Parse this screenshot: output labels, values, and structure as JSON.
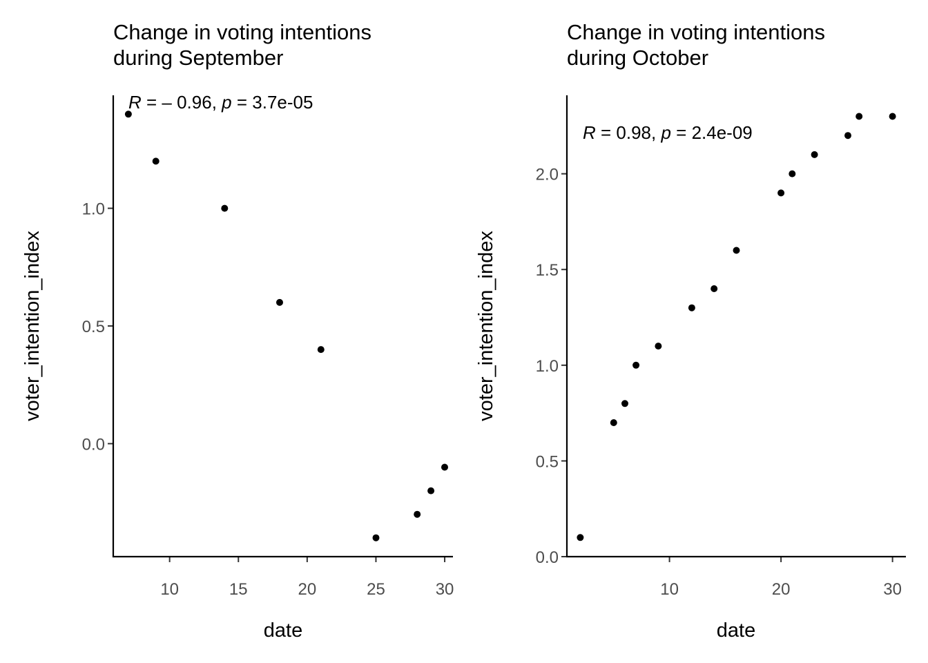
{
  "chart_data": [
    {
      "type": "scatter",
      "title_line1": "Change in voting intentions",
      "title_line2": "during September",
      "xlabel": "date",
      "ylabel": "voter_intention_index",
      "x_ticks": [
        10,
        15,
        20,
        25,
        30
      ],
      "x_tick_labels": [
        "10",
        "15",
        "20",
        "25",
        "30"
      ],
      "y_ticks": [
        0.0,
        0.5,
        1.0
      ],
      "y_tick_labels": [
        "0.0",
        "0.5",
        "1.0"
      ],
      "xlim": [
        5.9,
        30.6
      ],
      "ylim": [
        -0.48,
        1.48
      ],
      "points": [
        {
          "x": 7,
          "y": 1.4
        },
        {
          "x": 9,
          "y": 1.2
        },
        {
          "x": 14,
          "y": 1.0
        },
        {
          "x": 18,
          "y": 0.6
        },
        {
          "x": 21,
          "y": 0.4
        },
        {
          "x": 25,
          "y": -0.4
        },
        {
          "x": 28,
          "y": -0.3
        },
        {
          "x": 29,
          "y": -0.2
        },
        {
          "x": 30,
          "y": -0.1
        }
      ],
      "annotation": {
        "r_label": "R",
        "r_text": " = – 0.96, ",
        "p_label": "p",
        "p_text": " = 3.7e-05"
      },
      "grid": false
    },
    {
      "type": "scatter",
      "title_line1": "Change in voting intentions",
      "title_line2": "during October",
      "xlabel": "date",
      "ylabel": "voter_intention_index",
      "x_ticks": [
        10,
        20,
        30
      ],
      "x_tick_labels": [
        "10",
        "20",
        "30"
      ],
      "y_ticks": [
        0.0,
        0.5,
        1.0,
        1.5,
        2.0
      ],
      "y_tick_labels": [
        "0.0",
        "0.5",
        "1.0",
        "1.5",
        "2.0"
      ],
      "xlim": [
        0.8,
        31.2
      ],
      "ylim": [
        0.0,
        2.41
      ],
      "points": [
        {
          "x": 2,
          "y": 0.1
        },
        {
          "x": 5,
          "y": 0.7
        },
        {
          "x": 6,
          "y": 0.8
        },
        {
          "x": 7,
          "y": 1.0
        },
        {
          "x": 9,
          "y": 1.1
        },
        {
          "x": 12,
          "y": 1.3
        },
        {
          "x": 14,
          "y": 1.4
        },
        {
          "x": 16,
          "y": 1.6
        },
        {
          "x": 20,
          "y": 1.9
        },
        {
          "x": 21,
          "y": 2.0
        },
        {
          "x": 23,
          "y": 2.1
        },
        {
          "x": 26,
          "y": 2.2
        },
        {
          "x": 27,
          "y": 2.3
        },
        {
          "x": 30,
          "y": 2.3
        }
      ],
      "annotation": {
        "r_label": "R",
        "r_text": " = 0.98, ",
        "p_label": "p",
        "p_text": " = 2.4e-09"
      },
      "grid": false
    }
  ]
}
